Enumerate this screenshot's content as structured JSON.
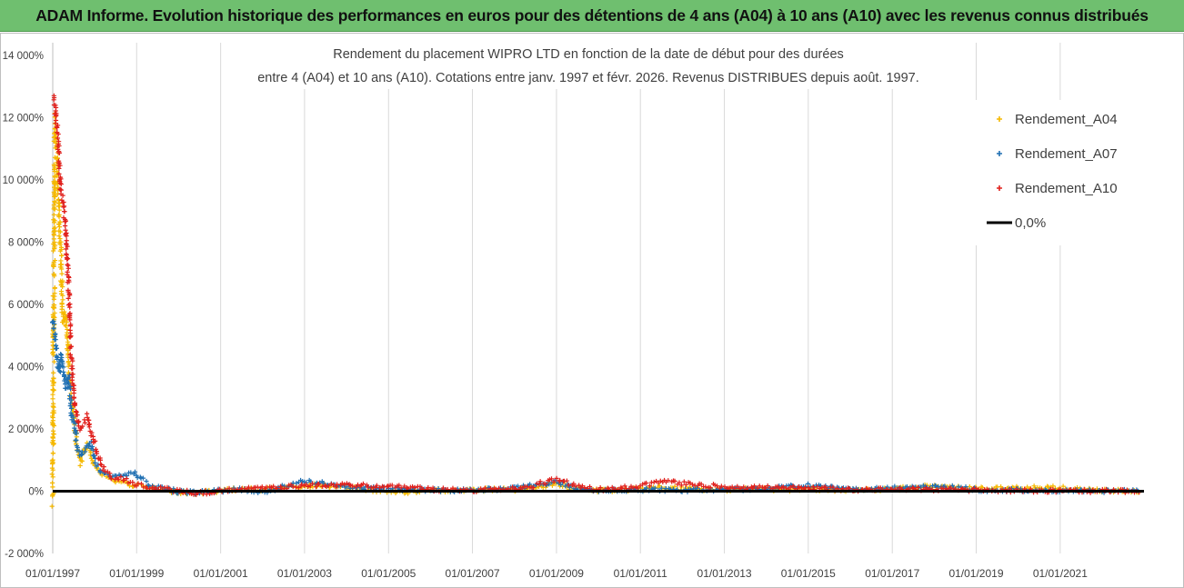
{
  "banner": {
    "text": "ADAM Informe. Evolution historique des performances en euros pour des détentions de 4 ans (A04) à 10 ans (A10) avec les revenus connus distribués"
  },
  "chart_data": {
    "type": "scatter",
    "title_line1": "Rendement du placement WIPRO LTD en fonction de la date de début pour des durées",
    "title_line2": "entre 4 (A04) et 10 ans (A10). Cotations entre janv. 1997 et févr. 2026. Revenus DISTRIBUES depuis août. 1997.",
    "xlabel": "",
    "ylabel": "",
    "ylim": [
      -2000,
      14000
    ],
    "y_ticks": [
      {
        "value": 14000,
        "label": "14 000%"
      },
      {
        "value": 12000,
        "label": "12 000%"
      },
      {
        "value": 10000,
        "label": "10 000%"
      },
      {
        "value": 8000,
        "label": "8 000%"
      },
      {
        "value": 6000,
        "label": "6 000%"
      },
      {
        "value": 4000,
        "label": "4 000%"
      },
      {
        "value": 2000,
        "label": "2 000%"
      },
      {
        "value": 0,
        "label": "0%"
      },
      {
        "value": -2000,
        "label": "-2 000%"
      }
    ],
    "xlim": [
      "1997-01-01",
      "2022-12-31"
    ],
    "x_ticks": [
      {
        "date": "1997-01-01",
        "label": "01/01/1997"
      },
      {
        "date": "1999-01-01",
        "label": "01/01/1999"
      },
      {
        "date": "2001-01-01",
        "label": "01/01/2001"
      },
      {
        "date": "2003-01-01",
        "label": "01/01/2003"
      },
      {
        "date": "2005-01-01",
        "label": "01/01/2005"
      },
      {
        "date": "2007-01-01",
        "label": "01/01/2007"
      },
      {
        "date": "2009-01-01",
        "label": "01/01/2009"
      },
      {
        "date": "2011-01-01",
        "label": "01/01/2011"
      },
      {
        "date": "2013-01-01",
        "label": "01/01/2013"
      },
      {
        "date": "2015-01-01",
        "label": "01/01/2015"
      },
      {
        "date": "2017-01-01",
        "label": "01/01/2017"
      },
      {
        "date": "2019-01-01",
        "label": "01/01/2019"
      },
      {
        "date": "2021-01-01",
        "label": "01/01/2021"
      }
    ],
    "grid": "vertical",
    "legend_position": "right",
    "series": [
      {
        "name": "Rendement_A04",
        "color": "#f5b800",
        "marker": "plus",
        "points": [
          [
            "1997-01-01",
            0
          ],
          [
            "1997-01-20",
            11600
          ],
          [
            "1997-02-05",
            11000
          ],
          [
            "1997-02-20",
            9600
          ],
          [
            "1997-03-05",
            8200
          ],
          [
            "1997-03-15",
            7400
          ],
          [
            "1997-04-01",
            5400
          ],
          [
            "1997-04-15",
            5700
          ],
          [
            "1997-05-01",
            5200
          ],
          [
            "1997-05-15",
            4500
          ],
          [
            "1997-06-01",
            3400
          ],
          [
            "1997-07-01",
            2400
          ],
          [
            "1997-08-01",
            1400
          ],
          [
            "1997-09-01",
            900
          ],
          [
            "1997-10-01",
            1300
          ],
          [
            "1997-11-01",
            1500
          ],
          [
            "1997-12-01",
            1200
          ],
          [
            "1998-01-01",
            800
          ],
          [
            "1998-03-01",
            550
          ],
          [
            "1998-06-01",
            350
          ],
          [
            "1998-09-01",
            280
          ],
          [
            "1999-01-01",
            180
          ],
          [
            "1999-06-01",
            80
          ],
          [
            "2000-01-01",
            -20
          ],
          [
            "2000-06-01",
            -60
          ],
          [
            "2001-01-01",
            20
          ],
          [
            "2001-06-01",
            70
          ],
          [
            "2002-01-01",
            50
          ],
          [
            "2002-06-01",
            100
          ],
          [
            "2003-01-01",
            150
          ],
          [
            "2003-06-01",
            200
          ],
          [
            "2004-01-01",
            120
          ],
          [
            "2004-06-01",
            60
          ],
          [
            "2005-01-01",
            -20
          ],
          [
            "2005-06-01",
            -40
          ],
          [
            "2006-01-01",
            20
          ],
          [
            "2006-06-01",
            20
          ],
          [
            "2007-01-01",
            20
          ],
          [
            "2007-06-01",
            60
          ],
          [
            "2008-01-01",
            50
          ],
          [
            "2008-06-01",
            120
          ],
          [
            "2009-01-01",
            250
          ],
          [
            "2009-06-01",
            80
          ],
          [
            "2010-01-01",
            20
          ],
          [
            "2010-06-01",
            40
          ],
          [
            "2011-01-01",
            60
          ],
          [
            "2011-06-01",
            120
          ],
          [
            "2012-01-01",
            80
          ],
          [
            "2012-06-01",
            60
          ],
          [
            "2013-01-01",
            50
          ],
          [
            "2013-06-01",
            80
          ],
          [
            "2014-01-01",
            70
          ],
          [
            "2014-06-01",
            30
          ],
          [
            "2015-01-01",
            70
          ],
          [
            "2015-06-01",
            60
          ],
          [
            "2016-01-01",
            20
          ],
          [
            "2016-06-01",
            20
          ],
          [
            "2017-01-01",
            60
          ],
          [
            "2017-06-01",
            120
          ],
          [
            "2018-01-01",
            160
          ],
          [
            "2018-06-01",
            120
          ],
          [
            "2019-01-01",
            80
          ],
          [
            "2019-06-01",
            80
          ],
          [
            "2020-01-01",
            100
          ],
          [
            "2020-06-01",
            150
          ],
          [
            "2021-01-01",
            100
          ],
          [
            "2021-06-01",
            60
          ],
          [
            "2022-01-01",
            20
          ],
          [
            "2022-06-01",
            10
          ],
          [
            "2022-12-01",
            10
          ]
        ]
      },
      {
        "name": "Rendement_A07",
        "color": "#1f6fb2",
        "marker": "plus",
        "points": [
          [
            "1997-01-01",
            5500
          ],
          [
            "1997-01-20",
            5000
          ],
          [
            "1997-02-10",
            4200
          ],
          [
            "1997-03-01",
            3800
          ],
          [
            "1997-03-20",
            4400
          ],
          [
            "1997-04-10",
            3600
          ],
          [
            "1997-05-01",
            3300
          ],
          [
            "1997-05-20",
            3700
          ],
          [
            "1997-06-15",
            2500
          ],
          [
            "1997-07-10",
            2100
          ],
          [
            "1997-08-01",
            1400
          ],
          [
            "1997-09-01",
            1100
          ],
          [
            "1997-10-01",
            1300
          ],
          [
            "1997-11-01",
            1500
          ],
          [
            "1997-12-01",
            1500
          ],
          [
            "1998-01-01",
            1000
          ],
          [
            "1998-03-01",
            600
          ],
          [
            "1998-06-01",
            500
          ],
          [
            "1998-09-01",
            500
          ],
          [
            "1998-12-01",
            600
          ],
          [
            "1999-03-01",
            350
          ],
          [
            "1999-06-01",
            150
          ],
          [
            "2000-01-01",
            -20
          ],
          [
            "2000-06-01",
            -40
          ],
          [
            "2001-01-01",
            20
          ],
          [
            "2001-06-01",
            50
          ],
          [
            "2002-01-01",
            -10
          ],
          [
            "2002-06-01",
            100
          ],
          [
            "2003-01-01",
            350
          ],
          [
            "2003-06-01",
            250
          ],
          [
            "2004-01-01",
            150
          ],
          [
            "2004-06-01",
            120
          ],
          [
            "2005-01-01",
            80
          ],
          [
            "2005-06-01",
            60
          ],
          [
            "2006-01-01",
            40
          ],
          [
            "2006-06-01",
            30
          ],
          [
            "2007-01-01",
            30
          ],
          [
            "2007-06-01",
            60
          ],
          [
            "2008-01-01",
            100
          ],
          [
            "2008-06-01",
            180
          ],
          [
            "2009-01-01",
            320
          ],
          [
            "2009-06-01",
            90
          ],
          [
            "2010-01-01",
            30
          ],
          [
            "2010-06-01",
            40
          ],
          [
            "2011-01-01",
            50
          ],
          [
            "2011-06-01",
            40
          ],
          [
            "2012-01-01",
            30
          ],
          [
            "2012-06-01",
            40
          ],
          [
            "2013-01-01",
            60
          ],
          [
            "2013-06-01",
            50
          ],
          [
            "2014-01-01",
            100
          ],
          [
            "2014-06-01",
            150
          ],
          [
            "2015-01-01",
            180
          ],
          [
            "2015-06-01",
            120
          ],
          [
            "2016-01-01",
            60
          ],
          [
            "2016-06-01",
            60
          ],
          [
            "2017-01-01",
            100
          ],
          [
            "2017-06-01",
            150
          ],
          [
            "2018-01-01",
            150
          ],
          [
            "2018-06-01",
            130
          ],
          [
            "2019-01-01",
            50
          ],
          [
            "2019-06-01",
            30
          ],
          [
            "2020-01-01",
            30
          ],
          [
            "2020-06-01",
            20
          ],
          [
            "2021-01-01",
            20
          ],
          [
            "2021-06-01",
            10
          ],
          [
            "2022-01-01",
            10
          ],
          [
            "2022-12-01",
            10
          ]
        ]
      },
      {
        "name": "Rendement_A10",
        "color": "#e0201c",
        "marker": "plus",
        "points": [
          [
            "1997-01-15",
            12700
          ],
          [
            "1997-01-25",
            12200
          ],
          [
            "1997-02-10",
            11700
          ],
          [
            "1997-02-25",
            10500
          ],
          [
            "1997-03-10",
            9800
          ],
          [
            "1997-03-25",
            9400
          ],
          [
            "1997-04-05",
            9100
          ],
          [
            "1997-04-20",
            8500
          ],
          [
            "1997-05-05",
            7800
          ],
          [
            "1997-05-20",
            6600
          ],
          [
            "1997-06-05",
            4600
          ],
          [
            "1997-06-20",
            3800
          ],
          [
            "1997-07-10",
            3000
          ],
          [
            "1997-08-01",
            2400
          ],
          [
            "1997-09-01",
            2000
          ],
          [
            "1997-10-01",
            2200
          ],
          [
            "1997-11-01",
            2400
          ],
          [
            "1997-12-01",
            1900
          ],
          [
            "1998-01-01",
            1500
          ],
          [
            "1998-03-01",
            800
          ],
          [
            "1998-06-01",
            450
          ],
          [
            "1998-09-01",
            400
          ],
          [
            "1999-01-01",
            200
          ],
          [
            "1999-06-01",
            120
          ],
          [
            "2000-01-01",
            20
          ],
          [
            "2000-06-01",
            -60
          ],
          [
            "2001-01-01",
            0
          ],
          [
            "2001-06-01",
            80
          ],
          [
            "2002-01-01",
            100
          ],
          [
            "2002-06-01",
            100
          ],
          [
            "2003-01-01",
            200
          ],
          [
            "2003-06-01",
            180
          ],
          [
            "2004-01-01",
            200
          ],
          [
            "2004-06-01",
            180
          ],
          [
            "2005-01-01",
            150
          ],
          [
            "2005-06-01",
            120
          ],
          [
            "2006-01-01",
            60
          ],
          [
            "2006-06-01",
            40
          ],
          [
            "2007-01-01",
            30
          ],
          [
            "2007-06-01",
            50
          ],
          [
            "2008-01-01",
            100
          ],
          [
            "2008-06-01",
            150
          ],
          [
            "2009-01-01",
            400
          ],
          [
            "2009-06-01",
            180
          ],
          [
            "2010-01-01",
            60
          ],
          [
            "2010-06-01",
            80
          ],
          [
            "2011-01-01",
            150
          ],
          [
            "2011-06-01",
            320
          ],
          [
            "2012-01-01",
            250
          ],
          [
            "2012-06-01",
            200
          ],
          [
            "2013-01-01",
            150
          ],
          [
            "2013-06-01",
            100
          ],
          [
            "2014-01-01",
            150
          ],
          [
            "2014-06-01",
            120
          ],
          [
            "2015-01-01",
            100
          ],
          [
            "2015-06-01",
            80
          ],
          [
            "2016-01-01",
            60
          ],
          [
            "2016-06-01",
            50
          ],
          [
            "2017-01-01",
            60
          ],
          [
            "2017-06-01",
            70
          ],
          [
            "2018-01-01",
            60
          ],
          [
            "2018-06-01",
            50
          ],
          [
            "2019-01-01",
            30
          ],
          [
            "2019-06-01",
            30
          ],
          [
            "2020-01-01",
            20
          ],
          [
            "2020-06-01",
            20
          ],
          [
            "2021-01-01",
            15
          ],
          [
            "2021-06-01",
            10
          ],
          [
            "2022-01-01",
            5
          ],
          [
            "2022-12-01",
            5
          ]
        ]
      },
      {
        "name": "0,0%",
        "color": "#000000",
        "marker": "line",
        "points": [
          [
            "1997-01-01",
            0
          ],
          [
            "2022-12-31",
            0
          ]
        ]
      }
    ]
  }
}
